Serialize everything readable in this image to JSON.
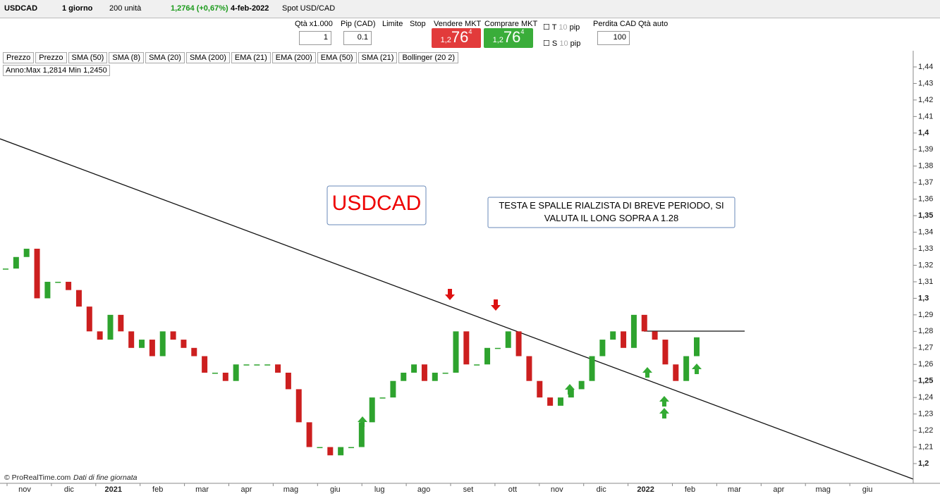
{
  "toolbar": {
    "symbol": "USDCAD",
    "period": "1 giorno",
    "units": "200 unità",
    "price": "1,2764 (+0,67%)",
    "date": "4-feb-2022",
    "instrument": "Spot USD/CAD"
  },
  "order": {
    "qty_label": "Qtà x1.000",
    "qty": "1",
    "pip_label": "Pip (CAD)",
    "pip": "0.1",
    "limit": "Limite",
    "stop": "Stop",
    "sell_label": "Vendere MKT",
    "sell_big": "1,2",
    "sell_main": "76",
    "sell_sup": "4",
    "buy_label": "Comprare MKT",
    "buy_big": "1,2",
    "buy_main": "76",
    "buy_sup": "4",
    "t": "T",
    "t_val": "10",
    "t_unit": "pip",
    "s": "S",
    "s_val": "10",
    "s_unit": "pip",
    "loss_label": "Perdita CAD",
    "loss": "100",
    "auto": "Qtà auto"
  },
  "indicators": [
    "Prezzo",
    "Prezzo",
    "SMA (50)",
    "SMA (8)",
    "SMA (20)",
    "SMA (200)",
    "EMA (21)",
    "EMA (200)",
    "EMA (50)",
    "SMA (21)",
    "Bollinger (20 2)"
  ],
  "range_info": "Anno:Max 1,2814 Min 1,2450",
  "footer": {
    "copyright": "© ProRealTime.com",
    "note": "Dati di fine giornata"
  },
  "chart_data": {
    "type": "candlestick",
    "title": "USDCAD",
    "annotation": "TESTA E SPALLE RIALZISTA DI BREVE PERIODO, SI VALUTA IL LONG SOPRA A 1.28",
    "x_labels": [
      "nov",
      "dic",
      "2021",
      "feb",
      "mar",
      "apr",
      "mag",
      "giu",
      "lug",
      "ago",
      "set",
      "ott",
      "nov",
      "dic",
      "2022",
      "feb",
      "mar",
      "apr",
      "mag",
      "giu"
    ],
    "values": [
      1.318,
      1.325,
      1.33,
      1.3,
      1.31,
      1.31,
      1.305,
      1.295,
      1.28,
      1.275,
      1.29,
      1.28,
      1.27,
      1.275,
      1.265,
      1.28,
      1.275,
      1.27,
      1.265,
      1.255,
      1.255,
      1.25,
      1.26,
      1.26,
      1.26,
      1.26,
      1.255,
      1.245,
      1.225,
      1.21,
      1.21,
      1.205,
      1.21,
      1.21,
      1.225,
      1.24,
      1.24,
      1.25,
      1.255,
      1.26,
      1.25,
      1.255,
      1.255,
      1.28,
      1.26,
      1.26,
      1.27,
      1.27,
      1.28,
      1.265,
      1.25,
      1.24,
      1.235,
      1.24,
      1.245,
      1.25,
      1.265,
      1.275,
      1.28,
      1.27,
      1.29,
      1.28,
      1.275,
      1.26,
      1.25,
      1.265,
      1.2764
    ],
    "up_color": "#2ea32e",
    "down_color": "#cc1f1f",
    "ylim": [
      1.1925,
      1.4475
    ],
    "yticks": [
      {
        "value": 1.44,
        "label": "1,44"
      },
      {
        "value": 1.43,
        "label": "1,43"
      },
      {
        "value": 1.42,
        "label": "1,42"
      },
      {
        "value": 1.41,
        "label": "1,41"
      },
      {
        "value": 1.4,
        "label": "1,4"
      },
      {
        "value": 1.39,
        "label": "1,39"
      },
      {
        "value": 1.38,
        "label": "1,38"
      },
      {
        "value": 1.37,
        "label": "1,37"
      },
      {
        "value": 1.36,
        "label": "1,36"
      },
      {
        "value": 1.35,
        "label": "1,35"
      },
      {
        "value": 1.34,
        "label": "1,34"
      },
      {
        "value": 1.33,
        "label": "1,33"
      },
      {
        "value": 1.32,
        "label": "1,32"
      },
      {
        "value": 1.31,
        "label": "1,31"
      },
      {
        "value": 1.3,
        "label": "1,3"
      },
      {
        "value": 1.29,
        "label": "1,29"
      },
      {
        "value": 1.28,
        "label": "1,28"
      },
      {
        "value": 1.27,
        "label": "1,27"
      },
      {
        "value": 1.26,
        "label": "1,26"
      },
      {
        "value": 1.25,
        "label": "1,25"
      },
      {
        "value": 1.24,
        "label": "1,24"
      },
      {
        "value": 1.23,
        "label": "1,23"
      },
      {
        "value": 1.22,
        "label": "1,22"
      },
      {
        "value": 1.21,
        "label": "1,21"
      },
      {
        "value": 1.2,
        "label": "1,2"
      }
    ]
  }
}
